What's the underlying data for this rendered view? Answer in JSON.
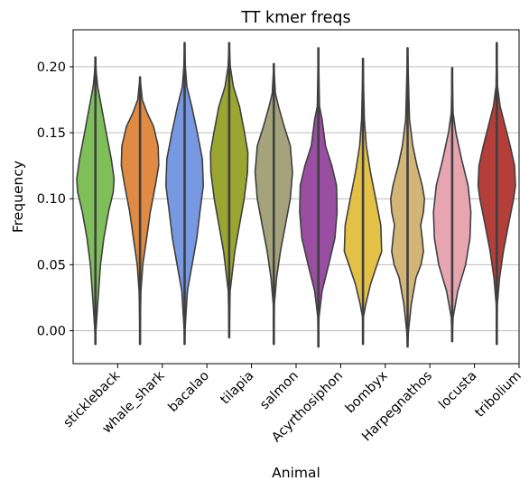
{
  "chart_data": {
    "type": "violin",
    "title": "TT kmer freqs",
    "xlabel": "Animal",
    "ylabel": "Frequency",
    "ylim": [
      -0.025,
      0.228
    ],
    "yticks": [
      "0.00",
      "0.05",
      "0.10",
      "0.15",
      "0.20"
    ],
    "ytick_values": [
      0.0,
      0.05,
      0.1,
      0.15,
      0.2
    ],
    "grid": "horizontal",
    "categories": [
      "stickleback",
      "whale_shark",
      "bacalao",
      "tilapia",
      "salmon",
      "Acyrthosiphon",
      "bombyx",
      "Harpegnathos",
      "locusta",
      "tribolium"
    ],
    "series": [
      {
        "category": "stickleback",
        "color": "#7fbf5a",
        "min": -0.01,
        "max": 0.207,
        "profile": [
          [
            -0.01,
            0.0
          ],
          [
            0.0,
            0.03
          ],
          [
            0.02,
            0.12
          ],
          [
            0.05,
            0.27
          ],
          [
            0.07,
            0.45
          ],
          [
            0.09,
            0.7
          ],
          [
            0.105,
            0.95
          ],
          [
            0.115,
            1.0
          ],
          [
            0.13,
            0.85
          ],
          [
            0.15,
            0.58
          ],
          [
            0.17,
            0.32
          ],
          [
            0.185,
            0.12
          ],
          [
            0.195,
            0.05
          ],
          [
            0.207,
            0.0
          ]
        ]
      },
      {
        "category": "whale_shark",
        "color": "#e08a44",
        "min": -0.01,
        "max": 0.192,
        "profile": [
          [
            -0.01,
            0.0
          ],
          [
            0.01,
            0.02
          ],
          [
            0.03,
            0.05
          ],
          [
            0.05,
            0.15
          ],
          [
            0.07,
            0.35
          ],
          [
            0.09,
            0.55
          ],
          [
            0.11,
            0.82
          ],
          [
            0.125,
            1.0
          ],
          [
            0.14,
            0.97
          ],
          [
            0.155,
            0.72
          ],
          [
            0.165,
            0.38
          ],
          [
            0.175,
            0.12
          ],
          [
            0.192,
            0.0
          ]
        ]
      },
      {
        "category": "bacalao",
        "color": "#7898e2",
        "min": -0.01,
        "max": 0.218,
        "profile": [
          [
            -0.01,
            0.0
          ],
          [
            0.0,
            0.02
          ],
          [
            0.03,
            0.15
          ],
          [
            0.05,
            0.4
          ],
          [
            0.07,
            0.65
          ],
          [
            0.09,
            0.82
          ],
          [
            0.11,
            1.0
          ],
          [
            0.13,
            0.95
          ],
          [
            0.15,
            0.68
          ],
          [
            0.17,
            0.38
          ],
          [
            0.185,
            0.12
          ],
          [
            0.2,
            0.04
          ],
          [
            0.218,
            0.0
          ]
        ]
      },
      {
        "category": "tilapia",
        "color": "#9aa632",
        "min": -0.005,
        "max": 0.218,
        "profile": [
          [
            -0.005,
            0.0
          ],
          [
            0.03,
            0.05
          ],
          [
            0.06,
            0.3
          ],
          [
            0.08,
            0.55
          ],
          [
            0.1,
            0.8
          ],
          [
            0.12,
            0.98
          ],
          [
            0.135,
            1.0
          ],
          [
            0.15,
            0.82
          ],
          [
            0.17,
            0.55
          ],
          [
            0.185,
            0.22
          ],
          [
            0.2,
            0.06
          ],
          [
            0.218,
            0.0
          ]
        ]
      },
      {
        "category": "salmon",
        "color": "#a4a37c",
        "min": -0.01,
        "max": 0.202,
        "profile": [
          [
            -0.01,
            0.0
          ],
          [
            0.02,
            0.03
          ],
          [
            0.04,
            0.15
          ],
          [
            0.06,
            0.35
          ],
          [
            0.08,
            0.62
          ],
          [
            0.1,
            0.88
          ],
          [
            0.12,
            1.0
          ],
          [
            0.14,
            0.88
          ],
          [
            0.155,
            0.55
          ],
          [
            0.17,
            0.25
          ],
          [
            0.18,
            0.08
          ],
          [
            0.202,
            0.0
          ]
        ]
      },
      {
        "category": "Acyrthosiphon",
        "color": "#9a4ea2",
        "min": -0.012,
        "max": 0.214,
        "profile": [
          [
            -0.012,
            0.0
          ],
          [
            0.01,
            0.03
          ],
          [
            0.03,
            0.2
          ],
          [
            0.05,
            0.55
          ],
          [
            0.07,
            0.88
          ],
          [
            0.09,
            1.0
          ],
          [
            0.11,
            0.97
          ],
          [
            0.125,
            0.72
          ],
          [
            0.14,
            0.38
          ],
          [
            0.16,
            0.2
          ],
          [
            0.17,
            0.06
          ],
          [
            0.214,
            0.0
          ]
        ]
      },
      {
        "category": "bombyx",
        "color": "#e3c146",
        "min": -0.01,
        "max": 0.206,
        "profile": [
          [
            -0.01,
            0.0
          ],
          [
            0.01,
            0.02
          ],
          [
            0.02,
            0.15
          ],
          [
            0.035,
            0.4
          ],
          [
            0.05,
            0.75
          ],
          [
            0.06,
            1.0
          ],
          [
            0.08,
            0.95
          ],
          [
            0.1,
            0.68
          ],
          [
            0.12,
            0.4
          ],
          [
            0.14,
            0.18
          ],
          [
            0.16,
            0.07
          ],
          [
            0.206,
            0.0
          ]
        ]
      },
      {
        "category": "Harpegnathos",
        "color": "#d3b677",
        "min": -0.012,
        "max": 0.214,
        "profile": [
          [
            -0.012,
            0.0
          ],
          [
            0.0,
            0.05
          ],
          [
            0.02,
            0.2
          ],
          [
            0.04,
            0.45
          ],
          [
            0.05,
            0.72
          ],
          [
            0.06,
            0.85
          ],
          [
            0.07,
            0.78
          ],
          [
            0.08,
            0.7
          ],
          [
            0.09,
            0.85
          ],
          [
            0.1,
            0.9
          ],
          [
            0.11,
            0.78
          ],
          [
            0.125,
            0.5
          ],
          [
            0.14,
            0.28
          ],
          [
            0.16,
            0.1
          ],
          [
            0.214,
            0.0
          ]
        ]
      },
      {
        "category": "locusta",
        "color": "#e7a5b1",
        "min": -0.008,
        "max": 0.199,
        "profile": [
          [
            -0.008,
            0.0
          ],
          [
            0.01,
            0.05
          ],
          [
            0.03,
            0.3
          ],
          [
            0.05,
            0.72
          ],
          [
            0.07,
            0.95
          ],
          [
            0.09,
            1.0
          ],
          [
            0.11,
            0.85
          ],
          [
            0.13,
            0.5
          ],
          [
            0.15,
            0.2
          ],
          [
            0.165,
            0.05
          ],
          [
            0.199,
            0.0
          ]
        ]
      },
      {
        "category": "tribolium",
        "color": "#b43e3a",
        "min": -0.01,
        "max": 0.218,
        "profile": [
          [
            -0.01,
            0.0
          ],
          [
            0.02,
            0.03
          ],
          [
            0.04,
            0.15
          ],
          [
            0.06,
            0.35
          ],
          [
            0.08,
            0.62
          ],
          [
            0.1,
            0.9
          ],
          [
            0.11,
            1.0
          ],
          [
            0.125,
            0.95
          ],
          [
            0.14,
            0.72
          ],
          [
            0.155,
            0.45
          ],
          [
            0.17,
            0.18
          ],
          [
            0.185,
            0.04
          ],
          [
            0.218,
            0.0
          ]
        ]
      }
    ]
  }
}
